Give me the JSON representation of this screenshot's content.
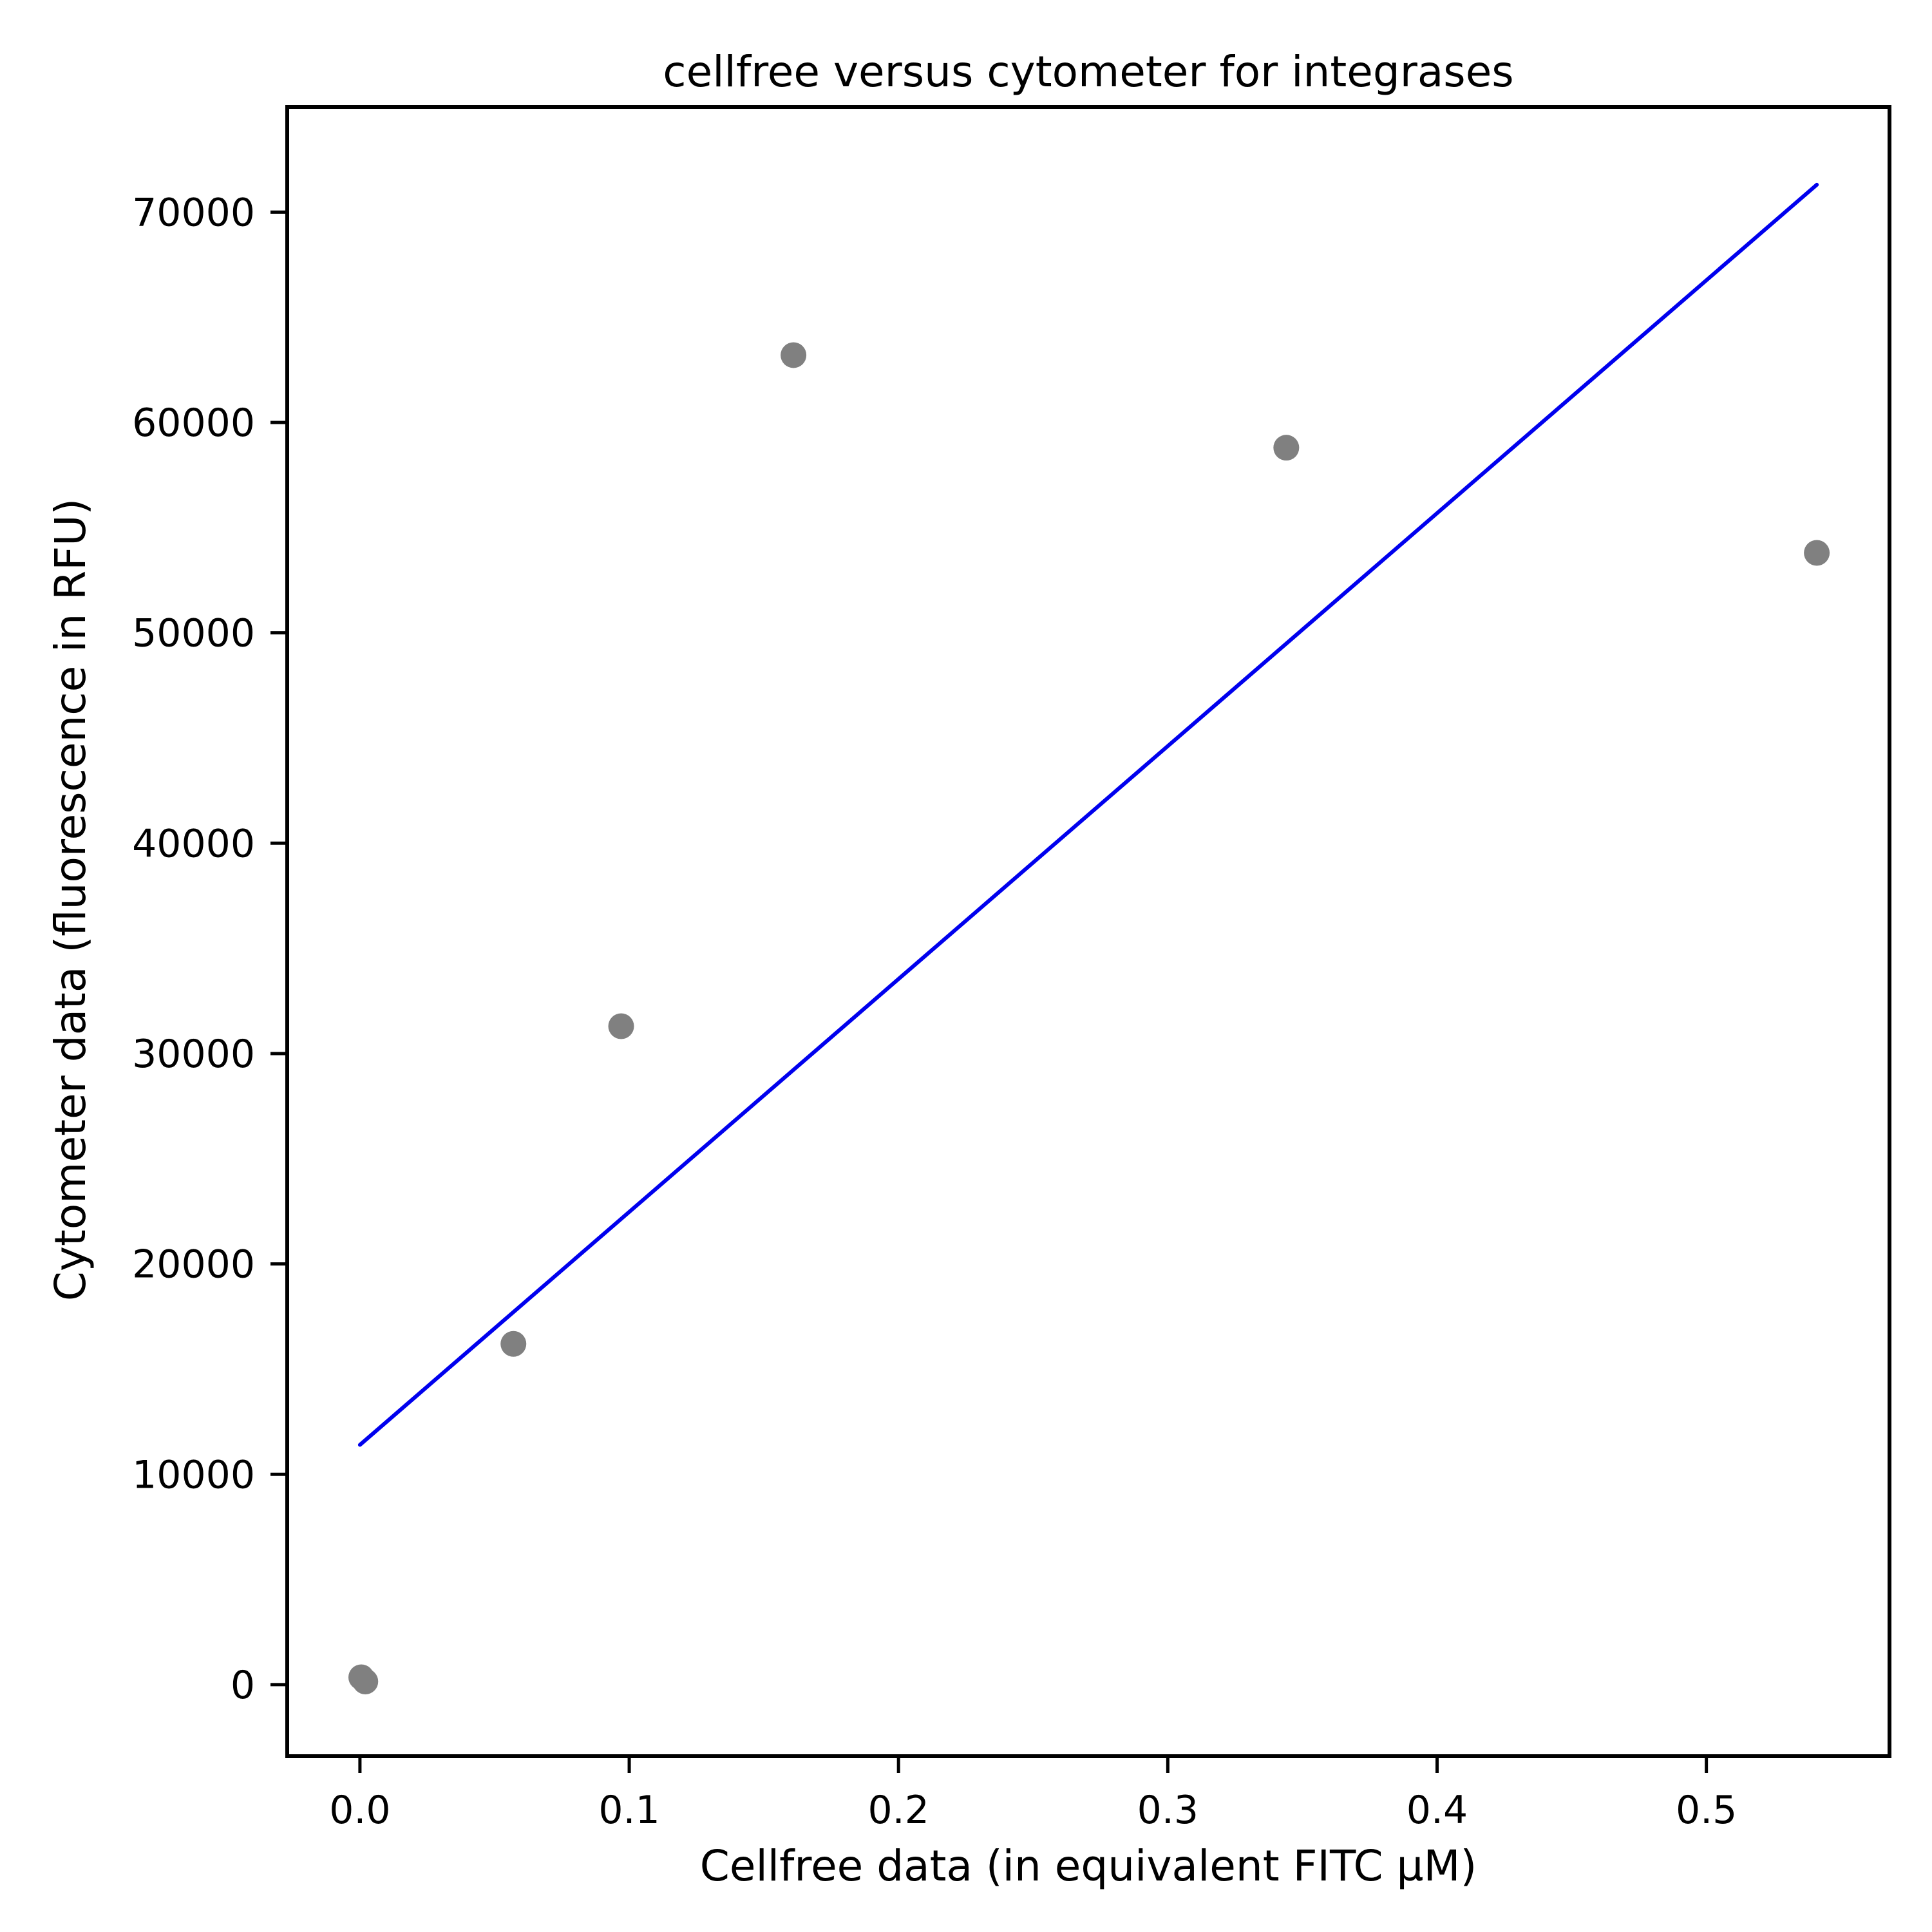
{
  "chart_data": {
    "type": "scatter",
    "title": "cellfree versus cytometer for integrases",
    "xlabel": "Cellfree data (in equivalent FITC µM)",
    "ylabel": "Cytometer data (fluorescence in RFU)",
    "xlim": [
      -0.027,
      0.568
    ],
    "ylim": [
      -3400,
      75000
    ],
    "xticks": [
      {
        "value": 0.0,
        "label": "0.0"
      },
      {
        "value": 0.1,
        "label": "0.1"
      },
      {
        "value": 0.2,
        "label": "0.2"
      },
      {
        "value": 0.3,
        "label": "0.3"
      },
      {
        "value": 0.4,
        "label": "0.4"
      },
      {
        "value": 0.5,
        "label": "0.5"
      }
    ],
    "yticks": [
      {
        "value": 0,
        "label": "0"
      },
      {
        "value": 10000,
        "label": "10000"
      },
      {
        "value": 20000,
        "label": "20000"
      },
      {
        "value": 30000,
        "label": "30000"
      },
      {
        "value": 40000,
        "label": "40000"
      },
      {
        "value": 50000,
        "label": "50000"
      },
      {
        "value": 60000,
        "label": "60000"
      },
      {
        "value": 70000,
        "label": "70000"
      }
    ],
    "grid": false,
    "legend": false,
    "points": {
      "color": "#808080",
      "x": [
        0.0005,
        0.002,
        0.057,
        0.097,
        0.161,
        0.344,
        0.541
      ],
      "y": [
        350,
        150,
        16200,
        31300,
        63200,
        58800,
        53800
      ]
    },
    "fit_line": {
      "color": "#0000ee",
      "x": [
        0.0,
        0.541
      ],
      "y": [
        11400,
        71300
      ]
    }
  }
}
